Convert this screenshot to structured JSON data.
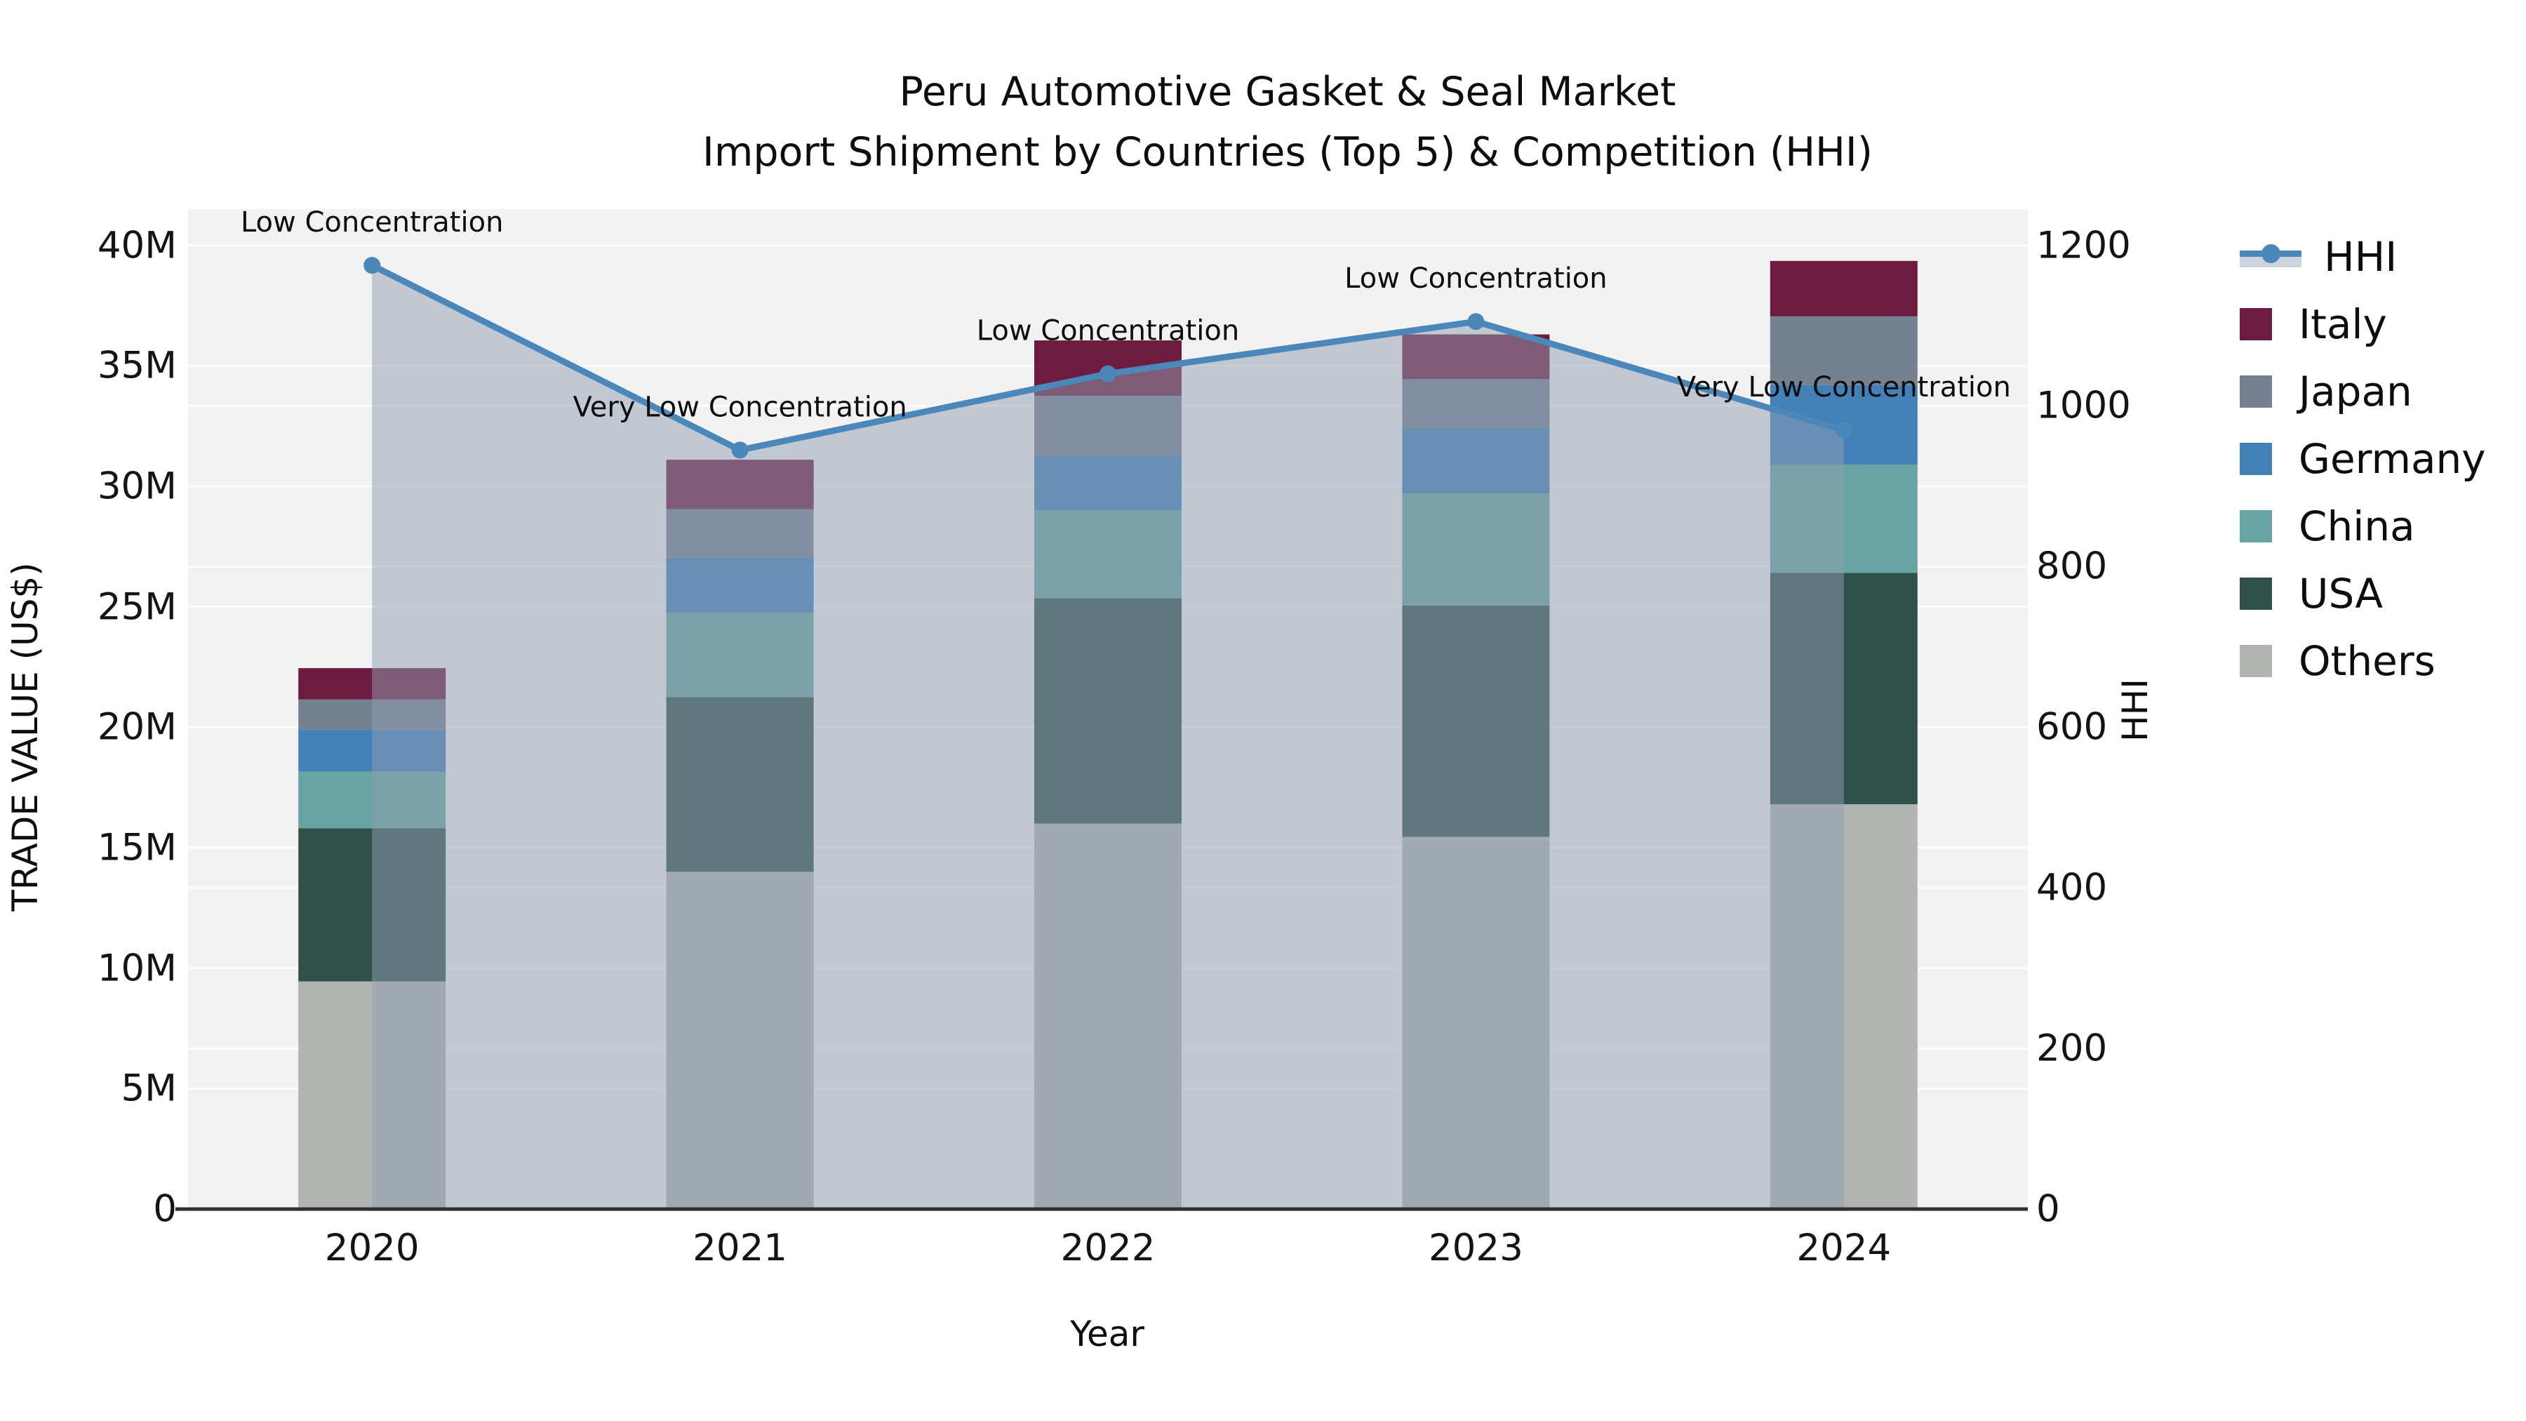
{
  "title": {
    "line1": "Peru Automotive Gasket & Seal Market",
    "line2": "Import Shipment by Countries (Top 5) & Competition (HHI)"
  },
  "axes": {
    "x": {
      "label": "Year",
      "categories": [
        "2020",
        "2021",
        "2022",
        "2023",
        "2024"
      ]
    },
    "y_left": {
      "label": "TRADE VALUE (US$)",
      "tick_labels": [
        "0",
        "5M",
        "10M",
        "15M",
        "20M",
        "25M",
        "30M",
        "35M",
        "40M"
      ],
      "tick_values_m": [
        0,
        5,
        10,
        15,
        20,
        25,
        30,
        35,
        40
      ]
    },
    "y_right": {
      "label": "HHI",
      "tick_labels": [
        "0",
        "200",
        "400",
        "600",
        "800",
        "1000",
        "1200"
      ],
      "tick_values": [
        0,
        200,
        400,
        600,
        800,
        1000,
        1200
      ]
    }
  },
  "legend": {
    "items": [
      {
        "label": "HHI",
        "type": "line",
        "color": "#4c87b9"
      },
      {
        "label": "Italy",
        "type": "swatch",
        "color": "#6d1b3f"
      },
      {
        "label": "Japan",
        "type": "swatch",
        "color": "#76818f"
      },
      {
        "label": "Germany",
        "type": "swatch",
        "color": "#4380b6"
      },
      {
        "label": "China",
        "type": "swatch",
        "color": "#68a4a1"
      },
      {
        "label": "USA",
        "type": "swatch",
        "color": "#30504a"
      },
      {
        "label": "Others",
        "type": "swatch",
        "color": "#b2b4b1"
      }
    ]
  },
  "chart_data": {
    "type": [
      "bar",
      "line",
      "area"
    ],
    "title": "Peru Automotive Gasket & Seal Market — Import Shipment by Countries (Top 5) & Competition (HHI)",
    "categories": [
      "2020",
      "2021",
      "2022",
      "2023",
      "2024"
    ],
    "bar_unit": "USD millions",
    "stack_order_bottom_to_top": [
      "Others",
      "USA",
      "China",
      "Germany",
      "Japan",
      "Italy"
    ],
    "series": [
      {
        "name": "Others",
        "color": "#b2b4b1",
        "values": [
          9.45,
          14.0,
          16.0,
          15.45,
          16.8
        ]
      },
      {
        "name": "USA",
        "color": "#30504a",
        "values": [
          6.35,
          7.25,
          9.35,
          9.6,
          9.6
        ]
      },
      {
        "name": "China",
        "color": "#68a4a1",
        "values": [
          2.35,
          3.5,
          3.65,
          4.65,
          4.5
        ]
      },
      {
        "name": "Germany",
        "color": "#4380b6",
        "values": [
          1.75,
          2.3,
          2.25,
          2.7,
          3.3
        ]
      },
      {
        "name": "Japan",
        "color": "#76818f",
        "values": [
          1.25,
          2.0,
          2.5,
          2.05,
          2.85
        ]
      },
      {
        "name": "Italy",
        "color": "#6d1b3f",
        "values": [
          1.3,
          2.05,
          2.3,
          1.85,
          2.3
        ]
      }
    ],
    "bar_totals_m": [
      22.45,
      31.1,
      36.05,
      36.3,
      39.35
    ],
    "hhi": {
      "name": "HHI",
      "color": "#4c87b9",
      "area_fill": "rgba(143,157,178,0.5)",
      "values": [
        1175,
        945,
        1040,
        1105,
        970
      ],
      "annotations": [
        "Low Concentration",
        "Very Low Concentration",
        "Low Concentration",
        "Low Concentration",
        "Very Low Concentration"
      ]
    },
    "xlabel": "Year",
    "ylabel_left": "TRADE VALUE (US$)",
    "ylabel_right": "HHI",
    "ylim_left_m": [
      0,
      41.5
    ],
    "ylim_right": [
      0,
      1245
    ],
    "grid": true,
    "plot_bg": "#f2f2f2",
    "grid_color": "#ffffff",
    "legend_position": "right"
  }
}
